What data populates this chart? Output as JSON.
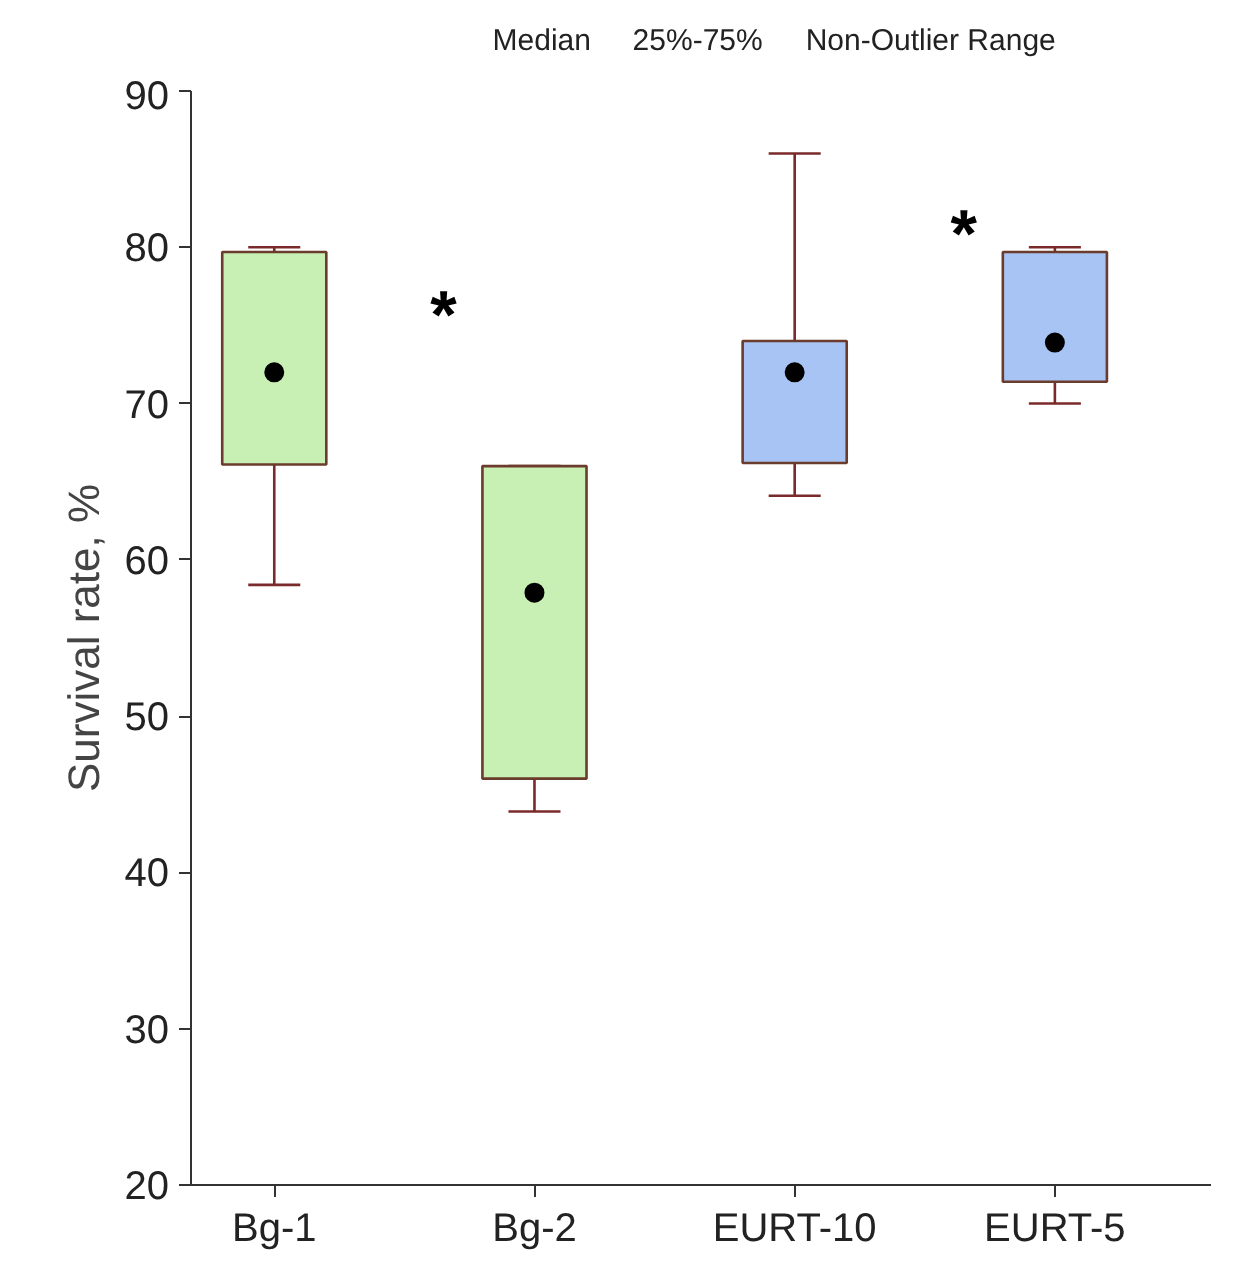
{
  "chart_data": {
    "type": "box",
    "ylabel": "Survival rate, %",
    "categories": [
      "Bg-1",
      "Bg-2",
      "EURT-10",
      "EURT-5"
    ],
    "colors": [
      "#c8f0b4",
      "#c8f0b4",
      "#a8c4f4",
      "#a8c4f4"
    ],
    "boxes": [
      {
        "low": 58.4,
        "q1": 66.1,
        "median": 72.0,
        "q3": 79.7,
        "high": 80.0
      },
      {
        "low": 43.9,
        "q1": 46.0,
        "median": 57.9,
        "q3": 66.0,
        "high": 66.0
      },
      {
        "low": 64.1,
        "q1": 66.2,
        "median": 72.0,
        "q3": 74.0,
        "high": 86.0
      },
      {
        "low": 70.0,
        "q1": 71.4,
        "median": 73.9,
        "q3": 79.7,
        "high": 80.0
      }
    ],
    "ylim": [
      20,
      90
    ],
    "yticks": [
      20,
      30,
      40,
      50,
      60,
      70,
      80,
      90
    ],
    "grid": false,
    "annotations": [
      "Median",
      "25%-75%",
      "Non-Outlier Range",
      "*",
      "*"
    ]
  }
}
